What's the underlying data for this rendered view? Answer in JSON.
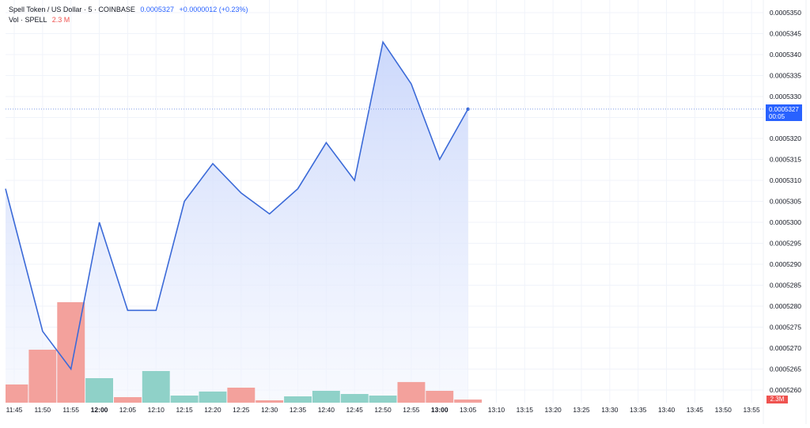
{
  "header": {
    "symbol_line": "Spell Token / US Dollar · 5 · COINBASE",
    "last_price": "0.0005327",
    "change": "+0.0000012 (+0.23%)",
    "volume_label": "Vol · SPELL",
    "volume_value": "2.3 M"
  },
  "price_label": {
    "price": "0.0005327",
    "countdown": "00:05",
    "color": "#2962ff"
  },
  "volume_badge": {
    "value": "2.3M",
    "color": "#ef5350"
  },
  "colors": {
    "line": "#3b6ad8",
    "area_top": "#c9d6fb",
    "area_bottom": "#f3f6fe",
    "vol_up": "#8fd1c8",
    "vol_down": "#f3a19c",
    "grid": "#f0f3fa",
    "axis_text": "#131722"
  },
  "chart_data": {
    "type": "area",
    "title": "Spell Token / US Dollar · 5 · COINBASE",
    "xlabel": "",
    "ylabel": "",
    "ylim": [
      0.000526,
      0.000535
    ],
    "grid": true,
    "legend_position": "top-left",
    "y_ticks": [
      "0.0005350",
      "0.0005345",
      "0.0005340",
      "0.0005335",
      "0.0005330",
      "0.0005325",
      "0.0005320",
      "0.0005315",
      "0.0005310",
      "0.0005305",
      "0.0005300",
      "0.0005295",
      "0.0005290",
      "0.0005285",
      "0.0005280",
      "0.0005275",
      "0.0005270",
      "0.0005265",
      "0.0005260"
    ],
    "x_ticks": [
      "11:45",
      "11:50",
      "11:55",
      "12:00",
      "12:05",
      "12:10",
      "12:15",
      "12:20",
      "12:25",
      "12:30",
      "12:35",
      "12:40",
      "12:45",
      "12:50",
      "12:55",
      "13:00",
      "13:05",
      "13:10",
      "13:15",
      "13:20",
      "13:25",
      "13:30",
      "13:35",
      "13:40",
      "13:45",
      "13:50",
      "13:55"
    ],
    "categories": [
      "11:45",
      "11:50",
      "11:55",
      "12:00",
      "12:05",
      "12:10",
      "12:15",
      "12:20",
      "12:25",
      "12:30",
      "12:35",
      "12:40",
      "12:45",
      "12:50",
      "12:55",
      "13:00",
      "13:05"
    ],
    "series": [
      {
        "name": "Spell Token / US Dollar",
        "values": [
          0.00053,
          0.0005274,
          0.0005265,
          0.00053,
          0.0005279,
          0.0005279,
          0.0005305,
          0.0005314,
          0.0005307,
          0.0005302,
          0.0005308,
          0.0005319,
          0.000531,
          0.0005343,
          0.0005333,
          0.0005315,
          0.0005327
        ]
      },
      {
        "name": "Vol · SPELL (M)",
        "values": [
          13.2,
          38.5,
          73.0,
          17.8,
          4.0,
          23.0,
          5.2,
          8.1,
          10.9,
          1.7,
          4.6,
          8.6,
          6.3,
          5.2,
          15.0,
          8.6,
          2.3
        ],
        "direction": [
          "down",
          "down",
          "down",
          "up",
          "down",
          "up",
          "up",
          "up",
          "down",
          "down",
          "up",
          "up",
          "up",
          "up",
          "down",
          "down",
          "down"
        ]
      }
    ],
    "line_start_price": 0.0005308
  }
}
